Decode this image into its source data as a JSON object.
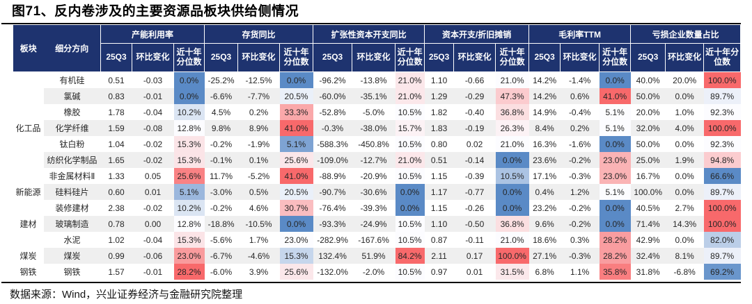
{
  "title": "图71、反内卷涉及的主要资源品板块供给侧情况",
  "footer": {
    "source": "数据来源：Wind，兴业证券经济与金融研究院整理"
  },
  "colors": {
    "header_bg": "#1e336f",
    "scale_low": "#5A8AC6",
    "scale_mid": "#FCFCFF",
    "scale_high": "#F8696B",
    "band": "#efefef"
  },
  "table": {
    "corner": {
      "sector": "板块",
      "segment": "细分方向"
    },
    "groups": [
      "产能利用率",
      "存货同比",
      "扩张性资本开支同比",
      "资本开支/折旧摊销",
      "毛利率TTM",
      "亏损企业数量占比"
    ],
    "sub_headers": [
      "25Q3",
      "环比变化",
      "近十年分位数"
    ],
    "percentile_col_indices": [
      2,
      5,
      8,
      11,
      14,
      17
    ],
    "rows": [
      {
        "sector": "化工品",
        "sector_span": 7,
        "segment": "有机硅",
        "values": [
          "0.51",
          "-0.03",
          "0.0%",
          "-25.2%",
          "-12.5%",
          "0.0%",
          "-96.2%",
          "-13.8%",
          "21.0%",
          "1.10",
          "-0.66",
          "21.0%",
          "14.2%",
          "-1.4%",
          "0.0%",
          "40.0%",
          "20.0%",
          "100.0%"
        ]
      },
      {
        "segment": "氯碱",
        "values": [
          "0.83",
          "-0.01",
          "0.0%",
          "-6.6%",
          "-7.7%",
          "20.5%",
          "-60.0%",
          "-35.1%",
          "21.0%",
          "1.29",
          "-0.29",
          "47.3%",
          "14.2%",
          "0.6%",
          "41.0%",
          "50.0%",
          "0.0%",
          "89.7%"
        ]
      },
      {
        "segment": "橡胶",
        "values": [
          "1.78",
          "-0.04",
          "10.2%",
          "4.5%",
          "0.2%",
          "33.3%",
          "-52.8%",
          "-5.0%",
          "10.5%",
          "1.82",
          "-0.40",
          "36.8%",
          "14.9%",
          "-0.4%",
          "5.1%",
          "20.0%",
          "1.0%",
          "92.3%"
        ]
      },
      {
        "segment": "化学纤维",
        "values": [
          "1.59",
          "-0.08",
          "12.8%",
          "9.8%",
          "8.9%",
          "41.0%",
          "-0.3%",
          "-38.0%",
          "15.7%",
          "1.83",
          "-0.19",
          "26.3%",
          "8.4%",
          "0.2%",
          "5.1%",
          "32.0%",
          "4.0%",
          "100.0%"
        ]
      },
      {
        "segment": "钛白粉",
        "values": [
          "1.04",
          "-0.02",
          "15.3%",
          "-0.2%",
          "-1.9%",
          "5.1%",
          "-588.3%",
          "-450.8%",
          "10.5%",
          "0.80",
          "0.02",
          "21.0%",
          "16.3%",
          "-1.6%",
          "0.0%",
          "50.0%",
          "0.0%",
          "92.3%"
        ]
      },
      {
        "segment": "纺织化学制品",
        "values": [
          "1.65",
          "-0.02",
          "15.3%",
          "-0.1%",
          "0.1%",
          "25.6%",
          "-109.0%",
          "-12.7%",
          "21.0%",
          "0.51",
          "-0.14",
          "0.0%",
          "23.6%",
          "-0.2%",
          "23.0%",
          "25.0%",
          "1.9%",
          "94.8%"
        ]
      },
      {
        "segment": "非金属材料Ⅱ",
        "values": [
          "1.33",
          "0.05",
          "25.6%",
          "11.7%",
          "-5.2%",
          "41.0%",
          "-88.9%",
          "-20.9%",
          "10.5%",
          "1.15",
          "-0.39",
          "10.5%",
          "17.1%",
          "-0.3%",
          "23.0%",
          "16.7%",
          "0.0%",
          "66.6%"
        ]
      },
      {
        "sector": "新能源",
        "sector_span": 1,
        "segment": "硅料硅片",
        "values": [
          "0.60",
          "0.01",
          "5.1%",
          "-3.0%",
          "0.5%",
          "20.5%",
          "-90.7%",
          "-30.6%",
          "0.0%",
          "1.17",
          "-0.77",
          "0.0%",
          "0.4%",
          "1.2%",
          "5.1%",
          "100.0%",
          "0.0%",
          "89.7%"
        ]
      },
      {
        "sector": "建材",
        "sector_span": 3,
        "segment": "装修建材",
        "values": [
          "2.38",
          "-0.02",
          "10.2%",
          "-0.2%",
          "4.6%",
          "30.7%",
          "-76.4%",
          "-39.3%",
          "0.0%",
          "1.15",
          "-0.26",
          "0.0%",
          "23.2%",
          "-0.2%",
          "0.0%",
          "40.5%",
          "2.7%",
          "100.0%"
        ]
      },
      {
        "segment": "玻璃制造",
        "values": [
          "0.78",
          "0.00",
          "12.8%",
          "-18.8%",
          "-10.5%",
          "0.0%",
          "-93.3%",
          "-24.9%",
          "10.5%",
          "1.10",
          "-0.50",
          "36.8%",
          "9.6%",
          "-0.2%",
          "0.0%",
          "71.4%",
          "14.3%",
          "100.0%"
        ]
      },
      {
        "segment": "水泥",
        "values": [
          "1.02",
          "-0.04",
          "15.3%",
          "-5.6%",
          "1.7%",
          "23.0%",
          "-282.9%",
          "-167.6%",
          "10.5%",
          "0.87",
          "-0.11",
          "21.0%",
          "18.6%",
          "0.3%",
          "28.2%",
          "42.9%",
          "0.0%",
          "82.0%"
        ]
      },
      {
        "sector": "煤炭",
        "sector_span": 1,
        "segment": "煤炭",
        "values": [
          "0.99",
          "-0.06",
          "23.0%",
          "-6.7%",
          "-4.6%",
          "15.3%",
          "132.4%",
          "51.9%",
          "84.2%",
          "2.11",
          "0.17",
          "100.0%",
          "27.1%",
          "-0.3%",
          "28.2%",
          "32.4%",
          "8.1%",
          "89.7%"
        ]
      },
      {
        "sector": "钢铁",
        "sector_span": 1,
        "segment": "钢铁",
        "values": [
          "1.57",
          "-0.01",
          "28.2%",
          "-6.0%",
          "3.9%",
          "25.6%",
          "-132.0%",
          "-2.0%",
          "10.5%",
          "0.97",
          "0.01",
          "31.5%",
          "6.8%",
          "1.1%",
          "35.8%",
          "31.8%",
          "-6.8%",
          "69.2%"
        ]
      }
    ]
  }
}
